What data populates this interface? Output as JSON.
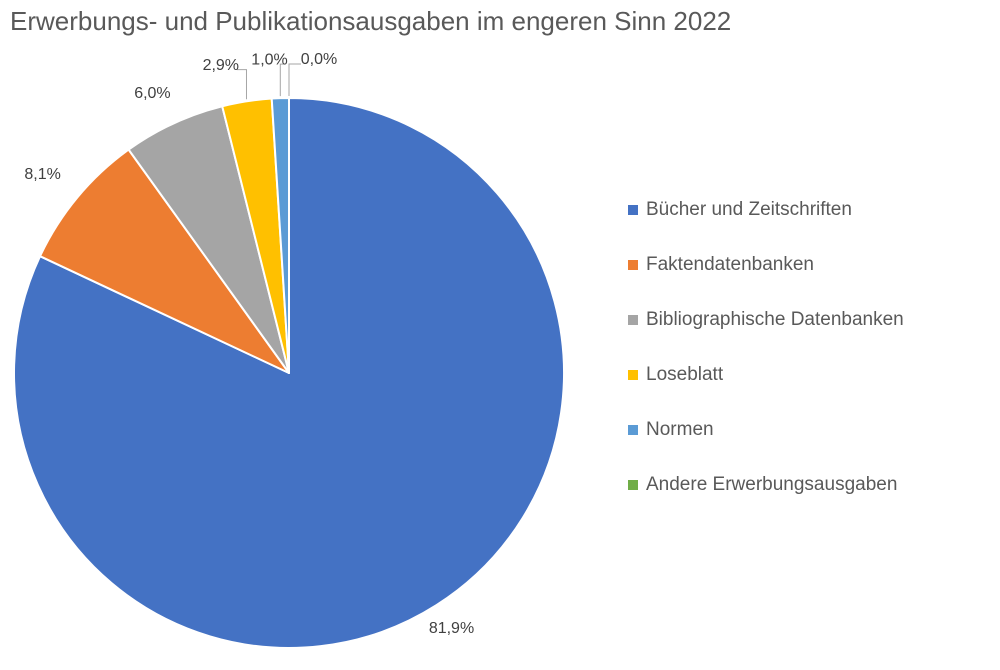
{
  "chart_data": {
    "type": "pie",
    "title": "Erwerbungs- und Publikationsausgaben im engeren Sinn 2022",
    "legend_position": "right",
    "start_angle": "12 o'clock, clockwise",
    "slices": [
      {
        "name": "Bücher und Zeitschriften",
        "value": 81.9,
        "label": "81,9%",
        "color": "#4472C4"
      },
      {
        "name": "Faktendatenbanken",
        "value": 8.1,
        "label": "8,1%",
        "color": "#ED7D31"
      },
      {
        "name": "Bibliographische Datenbanken",
        "value": 6.0,
        "label": "6,0%",
        "color": "#A5A5A5"
      },
      {
        "name": "Loseblatt",
        "value": 2.9,
        "label": "2,9%",
        "color": "#FFC000"
      },
      {
        "name": "Normen",
        "value": 1.0,
        "label": "1,0%",
        "color": "#5B9BD5"
      },
      {
        "name": "Andere Erwerbungsausgaben",
        "value": 0.0,
        "label": "0,0%",
        "color": "#70AD47"
      }
    ]
  }
}
